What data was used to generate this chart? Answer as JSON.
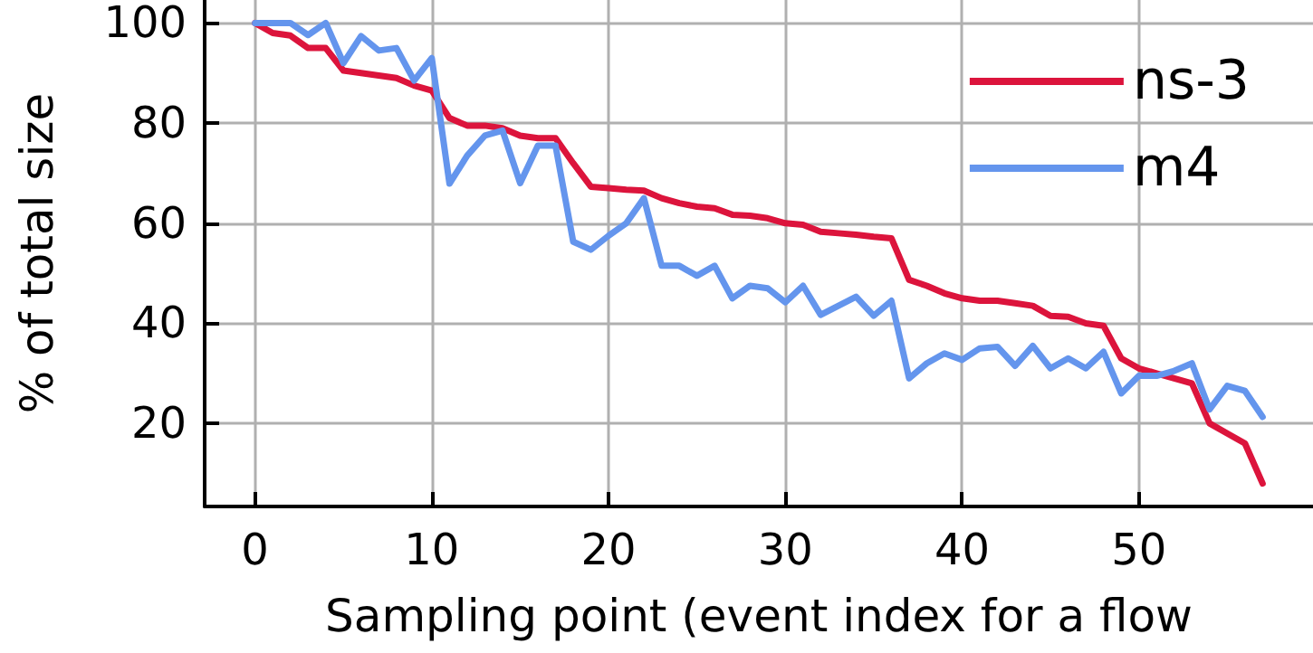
{
  "chart_data": {
    "type": "line",
    "xlabel": "Sampling point (event index for a flow",
    "ylabel": "% of total size",
    "x": [
      0,
      1,
      2,
      3,
      4,
      5,
      6,
      7,
      8,
      9,
      10,
      11,
      12,
      13,
      14,
      15,
      16,
      17,
      18,
      19,
      20,
      21,
      22,
      23,
      24,
      25,
      26,
      27,
      28,
      29,
      30,
      31,
      32,
      33,
      34,
      35,
      36,
      37,
      38,
      39,
      40,
      41,
      42,
      43,
      44,
      45,
      46,
      47,
      48,
      49,
      50,
      51,
      52,
      53,
      54,
      55,
      56,
      57
    ],
    "series": [
      {
        "name": "ns-3",
        "color": "#dc143c",
        "values": [
          100,
          98,
          97.5,
          95,
          95,
          90.5,
          90,
          89.5,
          89,
          87.5,
          86.5,
          81,
          79.5,
          79.5,
          79,
          77.5,
          77,
          77,
          72,
          67.3,
          67,
          66.7,
          66.5,
          65,
          64,
          63.3,
          63,
          61.7,
          61.5,
          61,
          60,
          59.7,
          58.3,
          58,
          57.7,
          57.3,
          57,
          48.7,
          47.5,
          46,
          45,
          44.5,
          44.5,
          44,
          43.5,
          41.5,
          41.3,
          40,
          39.5,
          33,
          31,
          30,
          29,
          28,
          20,
          18,
          16,
          8
        ]
      },
      {
        "name": "m4",
        "color": "#6495ed",
        "values": [
          100,
          100,
          100,
          97.6,
          100,
          92,
          97.4,
          94.5,
          95,
          88.5,
          93,
          67.9,
          73.5,
          77.5,
          78.5,
          68,
          75.5,
          75.5,
          56.3,
          54.7,
          57.5,
          60,
          65,
          51.5,
          51.5,
          49.5,
          51.5,
          45,
          47.5,
          47,
          44.2,
          47.5,
          41.7,
          43.5,
          45.3,
          41.5,
          44.5,
          29,
          32,
          34,
          32.7,
          35,
          35.3,
          31.5,
          35.5,
          31,
          33,
          31,
          34.3,
          26,
          29.5,
          29.5,
          30.5,
          32,
          22.8,
          27.5,
          26.5,
          21.3
        ]
      }
    ],
    "xlim": [
      -2.85,
      59.85
    ],
    "ylim": [
      3.4,
      104.6
    ],
    "xticks": [
      0,
      10,
      20,
      30,
      40,
      50
    ],
    "yticks": [
      20,
      40,
      60,
      80,
      100
    ],
    "grid": true,
    "legend": "top right",
    "marker": "none",
    "line_style": "solid"
  }
}
